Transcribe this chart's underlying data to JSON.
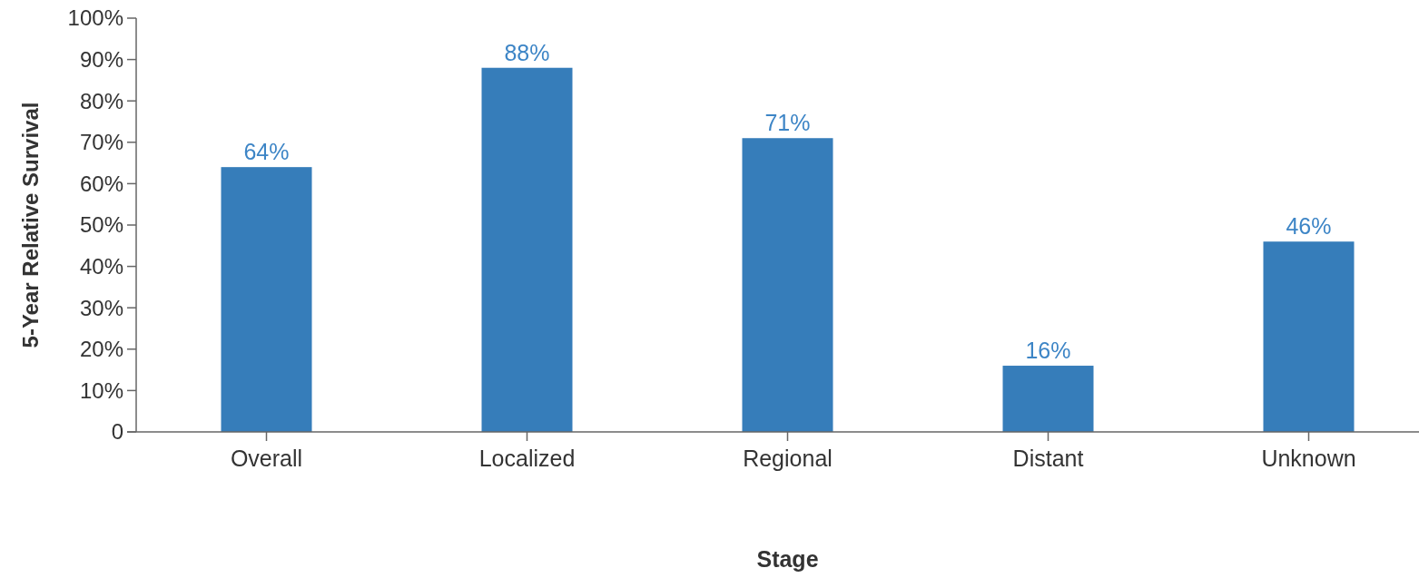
{
  "chart_data": {
    "type": "bar",
    "xlabel": "Stage",
    "ylabel": "5-Year Relative Survival",
    "categories": [
      "Overall",
      "Localized",
      "Regional",
      "Distant",
      "Unknown"
    ],
    "values": [
      64,
      88,
      71,
      16,
      46
    ],
    "value_labels": [
      "64%",
      "88%",
      "71%",
      "16%",
      "46%"
    ],
    "color": "#367dba",
    "ylim": [
      0,
      100
    ],
    "yticks": [
      0,
      {
        "value": 10,
        "label": "10%"
      },
      {
        "value": 20,
        "label": "20%"
      },
      {
        "value": 30,
        "label": "30%"
      },
      {
        "value": 40,
        "label": "40%"
      },
      {
        "value": 50,
        "label": "50%"
      },
      {
        "value": 60,
        "label": "60%"
      },
      {
        "value": 70,
        "label": "70%"
      },
      {
        "value": 80,
        "label": "80%"
      },
      {
        "value": 90,
        "label": "90%"
      },
      {
        "value": 100,
        "label": "100%"
      }
    ],
    "grid": false
  }
}
